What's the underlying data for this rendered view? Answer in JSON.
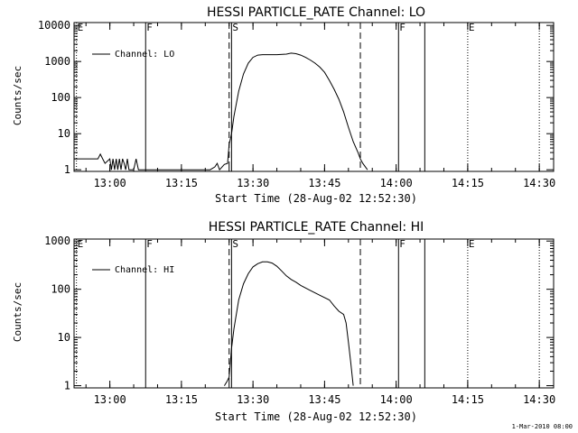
{
  "colors": {
    "foreground": "#000000",
    "background": "#ffffff"
  },
  "chart_data": [
    {
      "type": "line",
      "title": "HESSI PARTICLE_RATE Channel: LO",
      "xlabel": "Start Time (28-Aug-02 12:52:30)",
      "ylabel": "Counts/sec",
      "yscale": "log",
      "xlim": [
        "12:52:30",
        "14:33:00"
      ],
      "ylim": [
        0.9,
        12000
      ],
      "xticks": [
        "13:00",
        "13:15",
        "13:30",
        "13:45",
        "14:00",
        "14:15",
        "14:30"
      ],
      "yticks": [
        "1",
        "10",
        "100",
        "1000",
        "10000"
      ],
      "legend": {
        "label": "Channel: LO",
        "position": "top-left"
      },
      "grid": false,
      "markers": [
        {
          "time": "12:53:00",
          "label": "E",
          "style": "dotted"
        },
        {
          "time": "13:07:30",
          "label": "F",
          "style": "solid"
        },
        {
          "time": "13:25:30",
          "label": "S",
          "style": "solid"
        },
        {
          "time": "13:25:00",
          "label": "",
          "style": "dashed"
        },
        {
          "time": "13:52:30",
          "label": "",
          "style": "dashed"
        },
        {
          "time": "14:00:30",
          "label": "F",
          "style": "solid"
        },
        {
          "time": "14:06:00",
          "label": "",
          "style": "solid"
        },
        {
          "time": "14:15:00",
          "label": "E",
          "style": "dotted"
        },
        {
          "time": "14:30:00",
          "label": "",
          "style": "dotted"
        }
      ],
      "series": [
        {
          "name": "Channel: LO",
          "x": [
            "12:52:30",
            "12:55:00",
            "12:57:30",
            "12:58:00",
            "12:58:30",
            "12:59:00",
            "13:00:00",
            "13:00:20",
            "13:00:40",
            "13:01:00",
            "13:01:20",
            "13:01:40",
            "13:02:00",
            "13:02:20",
            "13:02:40",
            "13:03:00",
            "13:03:20",
            "13:03:40",
            "13:04:00",
            "13:05:00",
            "13:05:30",
            "13:06:00",
            "13:07:00",
            "13:20:00",
            "13:21:00",
            "13:22:00",
            "13:22:30",
            "13:23:00",
            "13:24:00",
            "13:24:40",
            "13:25:00",
            "13:25:30",
            "13:26:00",
            "13:27:00",
            "13:28:00",
            "13:29:00",
            "13:30:00",
            "13:31:00",
            "13:32:00",
            "13:33:00",
            "13:35:00",
            "13:37:00",
            "13:38:00",
            "13:39:00",
            "13:40:00",
            "13:41:00",
            "13:42:00",
            "13:43:00",
            "13:44:00",
            "13:45:00",
            "13:46:00",
            "13:47:00",
            "13:48:00",
            "13:49:00",
            "13:50:00",
            "13:51:00",
            "13:52:00",
            "13:52:30",
            "13:53:00",
            "13:54:00"
          ],
          "y": [
            2,
            2,
            2,
            2.7,
            2,
            1.5,
            2,
            1,
            2,
            1,
            2,
            1,
            2,
            1,
            2,
            1.5,
            1,
            2,
            1,
            1,
            2,
            1,
            1,
            1,
            1,
            1.2,
            1.5,
            1,
            1.4,
            1.5,
            5,
            10,
            30,
            150,
            450,
            900,
            1300,
            1500,
            1550,
            1550,
            1550,
            1600,
            1700,
            1650,
            1500,
            1300,
            1100,
            900,
            700,
            500,
            300,
            170,
            90,
            40,
            15,
            6,
            3,
            2,
            1.5,
            1
          ]
        }
      ]
    },
    {
      "type": "line",
      "title": "HESSI PARTICLE_RATE Channel: HI",
      "xlabel": "Start Time (28-Aug-02 12:52:30)",
      "ylabel": "Counts/sec",
      "yscale": "log",
      "xlim": [
        "12:52:30",
        "14:33:00"
      ],
      "ylim": [
        0.9,
        1100
      ],
      "xticks": [
        "13:00",
        "13:15",
        "13:30",
        "13:45",
        "14:00",
        "14:15",
        "14:30"
      ],
      "yticks": [
        "1",
        "10",
        "100",
        "1000"
      ],
      "legend": {
        "label": "Channel: HI",
        "position": "top-left"
      },
      "grid": false,
      "markers": [
        {
          "time": "12:53:00",
          "label": "E",
          "style": "dotted"
        },
        {
          "time": "13:07:30",
          "label": "F",
          "style": "solid"
        },
        {
          "time": "13:25:30",
          "label": "S",
          "style": "solid"
        },
        {
          "time": "13:25:00",
          "label": "",
          "style": "dashed"
        },
        {
          "time": "13:52:30",
          "label": "",
          "style": "dashed"
        },
        {
          "time": "14:00:30",
          "label": "F",
          "style": "solid"
        },
        {
          "time": "14:06:00",
          "label": "",
          "style": "solid"
        },
        {
          "time": "14:15:00",
          "label": "E",
          "style": "dotted"
        },
        {
          "time": "14:30:00",
          "label": "",
          "style": "dotted"
        }
      ],
      "series": [
        {
          "name": "Channel: HI",
          "x": [
            "13:24:00",
            "13:24:30",
            "13:25:00",
            "13:25:30",
            "13:26:00",
            "13:27:00",
            "13:28:00",
            "13:29:00",
            "13:30:00",
            "13:31:00",
            "13:32:00",
            "13:33:00",
            "13:34:00",
            "13:35:00",
            "13:36:00",
            "13:37:00",
            "13:38:00",
            "13:39:00",
            "13:40:00",
            "13:42:00",
            "13:44:00",
            "13:46:00",
            "13:47:00",
            "13:48:00",
            "13:49:00",
            "13:49:30",
            "13:50:00",
            "13:50:30",
            "13:51:00"
          ],
          "y": [
            1,
            1.2,
            1.5,
            6,
            15,
            60,
            130,
            210,
            290,
            340,
            370,
            370,
            350,
            300,
            240,
            190,
            160,
            140,
            120,
            95,
            75,
            60,
            45,
            35,
            30,
            20,
            8,
            3,
            1
          ]
        }
      ]
    }
  ],
  "footer": "1-Mar-2010 08:00"
}
